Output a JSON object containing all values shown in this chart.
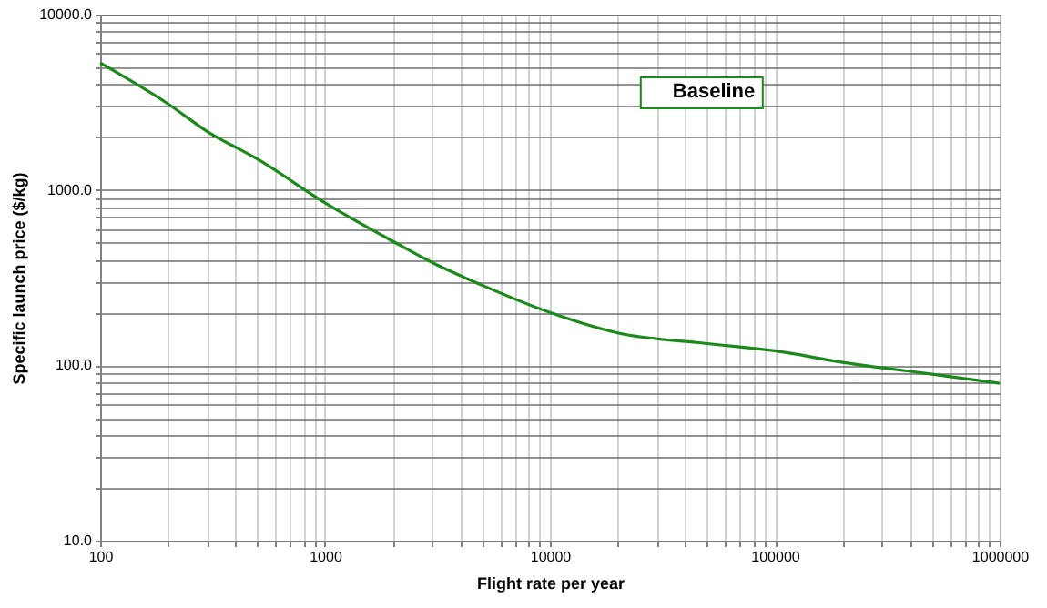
{
  "chart_data": {
    "type": "line",
    "xlabel": "Flight rate per year",
    "ylabel": "Specific launch price ($/kg)",
    "log": "xy",
    "grid": true,
    "legend": "top",
    "xlim": [
      100,
      1000000
    ],
    "ylim": [
      10,
      10000
    ],
    "xticks": [
      100,
      {
        "value": 200,
        "label": null
      },
      {
        "value": 300,
        "label": null
      },
      {
        "value": 400,
        "label": null
      },
      {
        "value": 500,
        "label": null
      },
      {
        "value": 600,
        "label": null
      },
      {
        "value": 700,
        "label": null
      },
      {
        "value": 800,
        "label": null
      },
      {
        "value": 900,
        "label": null
      },
      1000,
      {
        "value": 2000,
        "label": null
      },
      {
        "value": 3000,
        "label": null
      },
      {
        "value": 4000,
        "label": null
      },
      {
        "value": 5000,
        "label": null
      },
      {
        "value": 6000,
        "label": null
      },
      {
        "value": 7000,
        "label": null
      },
      {
        "value": 8000,
        "label": null
      },
      {
        "value": 9000,
        "label": null
      },
      10000,
      {
        "value": 20000,
        "label": null
      },
      {
        "value": 30000,
        "label": null
      },
      {
        "value": 40000,
        "label": null
      },
      {
        "value": 50000,
        "label": null
      },
      {
        "value": 60000,
        "label": null
      },
      {
        "value": 70000,
        "label": null
      },
      {
        "value": 80000,
        "label": null
      },
      {
        "value": 90000,
        "label": null
      },
      100000,
      {
        "value": 200000,
        "label": null
      },
      {
        "value": 300000,
        "label": null
      },
      {
        "value": 400000,
        "label": null
      },
      {
        "value": 500000,
        "label": null
      },
      {
        "value": 600000,
        "label": null
      },
      {
        "value": 700000,
        "label": null
      },
      {
        "value": 800000,
        "label": null
      },
      {
        "value": 900000,
        "label": null
      },
      1000000
    ],
    "yticks": [
      {
        "value": 10,
        "label": "10.0"
      },
      {
        "value": 20,
        "label": null
      },
      {
        "value": 30,
        "label": null
      },
      {
        "value": 40,
        "label": null
      },
      {
        "value": 50,
        "label": null
      },
      {
        "value": 60,
        "label": null
      },
      {
        "value": 70,
        "label": null
      },
      {
        "value": 80,
        "label": null
      },
      {
        "value": 90,
        "label": null
      },
      {
        "value": 100,
        "label": "100.0"
      },
      {
        "value": 200,
        "label": null
      },
      {
        "value": 300,
        "label": null
      },
      {
        "value": 400,
        "label": null
      },
      {
        "value": 500,
        "label": null
      },
      {
        "value": 600,
        "label": null
      },
      {
        "value": 700,
        "label": null
      },
      {
        "value": 800,
        "label": null
      },
      {
        "value": 900,
        "label": null
      },
      {
        "value": 1000,
        "label": "1000.0"
      },
      {
        "value": 2000,
        "label": null
      },
      {
        "value": 3000,
        "label": null
      },
      {
        "value": 4000,
        "label": null
      },
      {
        "value": 5000,
        "label": null
      },
      {
        "value": 6000,
        "label": null
      },
      {
        "value": 7000,
        "label": null
      },
      {
        "value": 8000,
        "label": null
      },
      {
        "value": 9000,
        "label": null
      },
      {
        "value": 10000,
        "label": "10000.0"
      }
    ],
    "x": [
      100,
      200,
      300,
      500,
      1000,
      2000,
      3000,
      5000,
      10000,
      20000,
      50000,
      100000,
      200000,
      500000,
      1000000
    ],
    "series": [
      {
        "name": "Baseline",
        "color": "#1a8a1a",
        "values": [
          5300,
          3100,
          2150,
          1500,
          845,
          510,
          385,
          286,
          200,
          153,
          133,
          121,
          104,
          89,
          79
        ]
      }
    ]
  }
}
